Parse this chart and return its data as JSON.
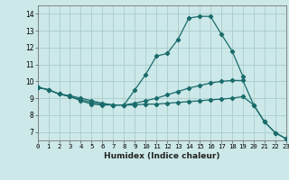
{
  "xlabel": "Humidex (Indice chaleur)",
  "bg_color": "#cce8e8",
  "grid_color": "#aacccc",
  "line_color": "#1a6b6b",
  "xlim": [
    0,
    23
  ],
  "ylim": [
    6.5,
    14.5
  ],
  "yticks": [
    7,
    8,
    9,
    10,
    11,
    12,
    13,
    14
  ],
  "xticks": [
    0,
    1,
    2,
    3,
    4,
    5,
    6,
    7,
    8,
    9,
    10,
    11,
    12,
    13,
    14,
    15,
    16,
    17,
    18,
    19,
    20,
    21,
    22,
    23
  ],
  "line1_x": [
    0,
    1,
    2,
    3,
    4,
    5,
    6,
    7,
    8,
    9,
    10,
    11,
    12,
    13,
    14,
    15,
    16,
    17,
    18,
    19
  ],
  "line1_y": [
    9.65,
    9.5,
    9.25,
    9.1,
    8.85,
    8.65,
    8.6,
    8.6,
    8.6,
    9.5,
    10.4,
    11.5,
    11.65,
    12.5,
    13.75,
    13.85,
    13.85,
    12.8,
    11.8,
    10.3
  ],
  "line2_x": [
    0,
    1,
    2,
    3,
    4,
    5,
    6,
    7,
    8,
    9,
    10,
    11,
    12,
    13,
    14,
    15,
    16,
    17,
    18,
    19,
    20,
    21,
    22,
    23
  ],
  "line2_y": [
    9.65,
    9.5,
    9.25,
    9.15,
    9.0,
    8.85,
    8.7,
    8.6,
    8.6,
    8.7,
    8.85,
    9.0,
    9.2,
    9.4,
    9.6,
    9.75,
    9.9,
    10.0,
    10.05,
    10.05,
    8.6,
    7.6,
    6.95,
    6.6
  ],
  "line3_x": [
    0,
    1,
    2,
    3,
    4,
    5,
    6,
    7,
    8,
    9,
    10,
    11,
    12,
    13,
    14,
    15,
    16,
    17,
    18,
    19,
    20,
    21,
    22,
    23
  ],
  "line3_y": [
    9.65,
    9.5,
    9.25,
    9.1,
    8.9,
    8.75,
    8.65,
    8.6,
    8.6,
    8.6,
    8.65,
    8.65,
    8.7,
    8.75,
    8.8,
    8.85,
    8.9,
    8.95,
    9.0,
    9.1,
    8.6,
    7.6,
    6.95,
    6.6
  ]
}
